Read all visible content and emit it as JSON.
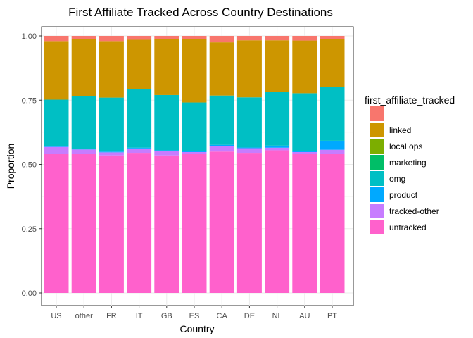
{
  "chart_data": {
    "type": "bar",
    "stacked": true,
    "title": "First Affiliate Tracked Across Country Destinations",
    "xlabel": "Country",
    "ylabel": "Proportion",
    "ylim": [
      0,
      1
    ],
    "yticks": [
      "0.00",
      "0.25",
      "0.50",
      "0.75",
      "1.00"
    ],
    "categories": [
      "US",
      "other",
      "FR",
      "IT",
      "GB",
      "ES",
      "CA",
      "DE",
      "NL",
      "AU",
      "PT"
    ],
    "legend_title": "first_affiliate_tracked",
    "legend_position": "right",
    "grid": true,
    "series": [
      {
        "name": "untracked",
        "color": "#FF61CC",
        "values": [
          0.54,
          0.54,
          0.535,
          0.545,
          0.535,
          0.54,
          0.55,
          0.545,
          0.555,
          0.54,
          0.54
        ]
      },
      {
        "name": "tracked-other",
        "color": "#C77CFF",
        "values": [
          0.028,
          0.018,
          0.012,
          0.017,
          0.017,
          0.008,
          0.022,
          0.018,
          0.01,
          0.008,
          0.017
        ]
      },
      {
        "name": "product",
        "color": "#00A9FF",
        "values": [
          0.004,
          0.003,
          0.003,
          0.003,
          0.003,
          0.003,
          0.004,
          0.003,
          0.008,
          0.004,
          0.035
        ]
      },
      {
        "name": "omg",
        "color": "#00BFC4",
        "values": [
          0.18,
          0.205,
          0.21,
          0.227,
          0.215,
          0.19,
          0.192,
          0.195,
          0.21,
          0.225,
          0.208
        ]
      },
      {
        "name": "marketing",
        "color": "#00BE67",
        "values": [
          0,
          0,
          0,
          0,
          0,
          0,
          0,
          0,
          0,
          0,
          0
        ]
      },
      {
        "name": "local ops",
        "color": "#7CAE00",
        "values": [
          0,
          0,
          0,
          0,
          0,
          0,
          0,
          0,
          0,
          0,
          0
        ]
      },
      {
        "name": "linked",
        "color": "#CD9600",
        "values": [
          0.228,
          0.222,
          0.22,
          0.193,
          0.218,
          0.247,
          0.207,
          0.222,
          0.2,
          0.205,
          0.188
        ]
      },
      {
        "name": "",
        "color": "#F8766D",
        "values": [
          0.02,
          0.012,
          0.02,
          0.015,
          0.012,
          0.012,
          0.025,
          0.017,
          0.017,
          0.018,
          0.012
        ]
      }
    ],
    "legend_order": [
      "",
      "linked",
      "local ops",
      "marketing",
      "omg",
      "product",
      "tracked-other",
      "untracked"
    ]
  }
}
